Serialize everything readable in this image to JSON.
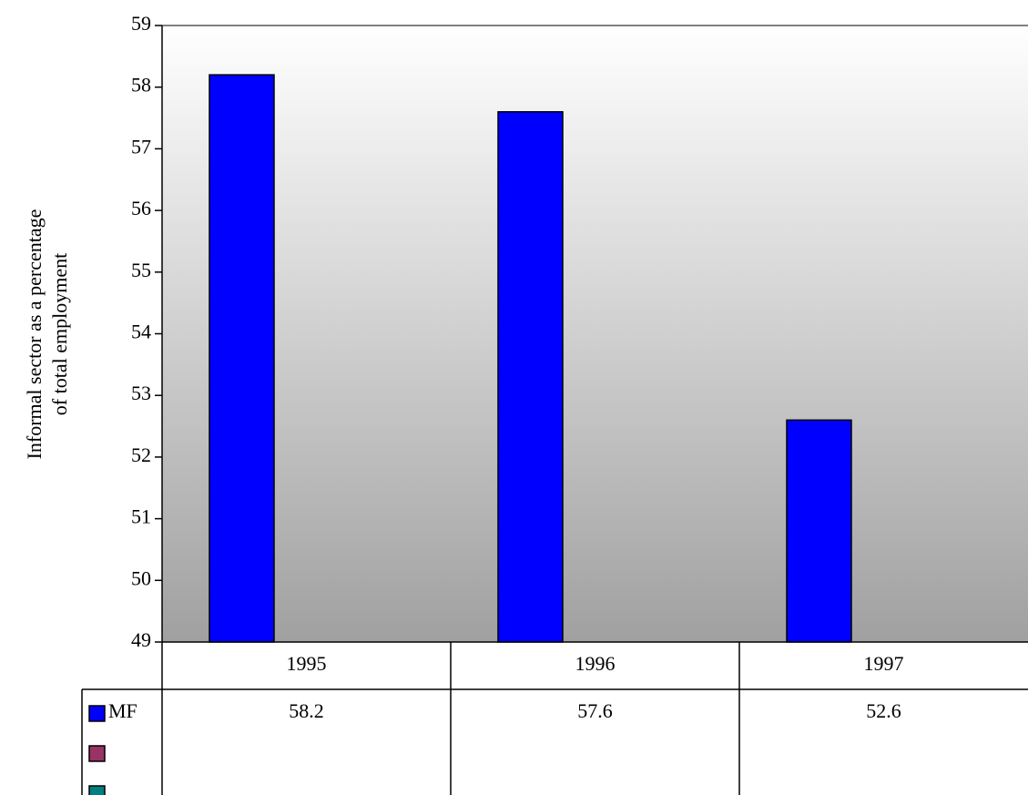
{
  "chart_data": {
    "type": "bar",
    "ylabel": [
      "Informal sector as a percentage",
      "of total employment"
    ],
    "categories": [
      "1995",
      "1996",
      "1997"
    ],
    "series": [
      {
        "name": "MF",
        "color": "#0000ff",
        "values": [
          58.2,
          57.6,
          52.6
        ]
      },
      {
        "name": null,
        "color": "#993366",
        "values": [
          null,
          null,
          null
        ]
      },
      {
        "name": null,
        "color": "#008080",
        "values": [
          null,
          null,
          null
        ]
      }
    ],
    "ylim": [
      49,
      59
    ],
    "yticks": [
      49,
      50,
      51,
      52,
      53,
      54,
      55,
      56,
      57,
      58,
      59
    ],
    "data_table": true
  }
}
